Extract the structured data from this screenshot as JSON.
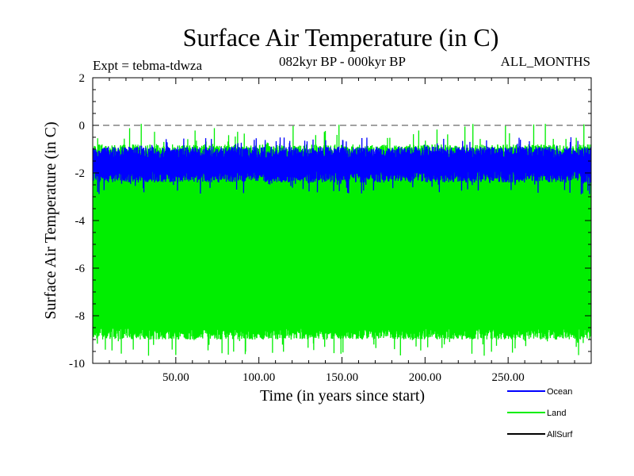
{
  "chart_data": {
    "type": "line",
    "title": "Surface Air Temperature (in C)",
    "subtitle_left": "Expt = tebma-tdwza",
    "subtitle_center": "082kyr BP - 000kyr BP",
    "subtitle_right": "ALL_MONTHS",
    "xlabel": "Time (in years since start)",
    "ylabel": "Surface Air Temperature (in C)",
    "xlim": [
      0,
      300
    ],
    "ylim": [
      -10,
      2
    ],
    "x_ticks": [
      50,
      100,
      150,
      200,
      250
    ],
    "x_tick_labels": [
      "50.00",
      "100.00",
      "150.00",
      "200.00",
      "250.00"
    ],
    "y_ticks": [
      2,
      0,
      -2,
      -4,
      -6,
      -8,
      -10
    ],
    "y_tick_labels": [
      "2",
      "0",
      "-2",
      "-4",
      "-6",
      "-8",
      "-10"
    ],
    "reference_line": {
      "y": 0,
      "style": "dashed"
    },
    "series": [
      {
        "name": "Land",
        "color": "#00ee00",
        "mean": -4.9,
        "min_approx": -9.7,
        "max_approx": 0.1,
        "envelope": {
          "upper": -0.8,
          "lower": -9.0
        }
      },
      {
        "name": "Ocean",
        "color": "#0000ff",
        "mean": -1.6,
        "min_approx": -2.9,
        "max_approx": -0.5,
        "envelope": {
          "upper": -0.9,
          "lower": -2.4
        }
      },
      {
        "name": "AllSurf",
        "color": "#000000"
      }
    ],
    "legend": [
      {
        "name": "Ocean",
        "color": "#0000ff"
      },
      {
        "name": "Land",
        "color": "#00ee00"
      },
      {
        "name": "AllSurf",
        "color": "#000000"
      }
    ]
  }
}
